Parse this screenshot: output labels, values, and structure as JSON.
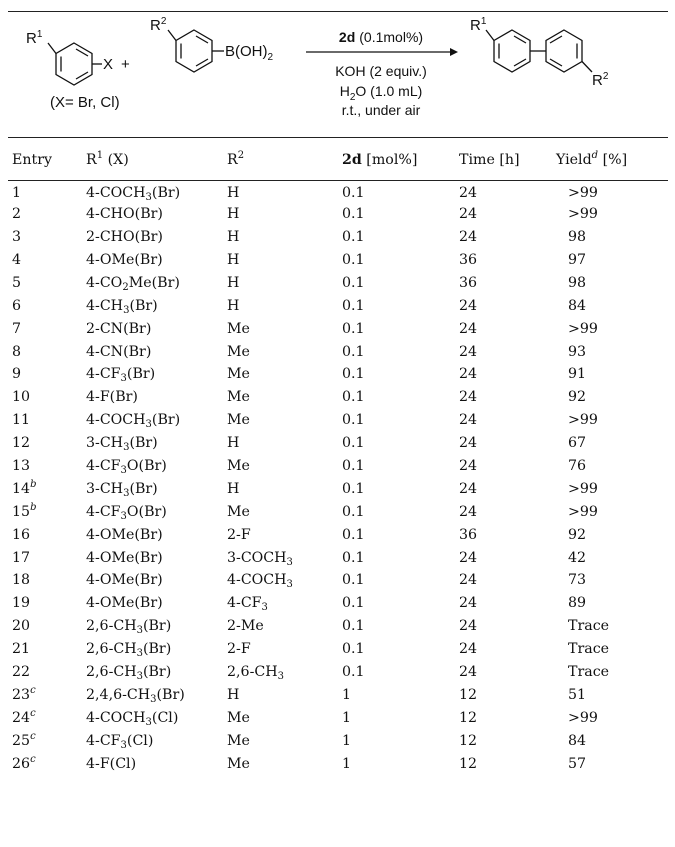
{
  "scheme": {
    "reactant1_sub": "R",
    "reactant1_sub_num": "1",
    "reactant1_group": "X",
    "plus": "+",
    "reactant2_sub": "R",
    "reactant2_sub_num": "2",
    "reactant2_group": "B(OH)",
    "reactant2_group_sub": "2",
    "x_note": "(X= Br, Cl)",
    "catalyst_bold": "2d",
    "catalyst_amount": "(0.1mol%)",
    "base": "KOH (2 equiv.)",
    "solvent_a": "H",
    "solvent_sub": "2",
    "solvent_b": "O (1.0 mL)",
    "conditions": "r.t., under air",
    "product_r1": "R",
    "product_r1_num": "1",
    "product_r2": "R",
    "product_r2_num": "2"
  },
  "table": {
    "headers": {
      "entry": "Entry",
      "r1": "R",
      "r1_sup": "1",
      "r1_suffix": " (X)",
      "r2": "R",
      "r2_sup": "2",
      "cat_bold": "2d",
      "cat_suffix": " [mol%]",
      "time": "Time [h]",
      "yield": "Yield",
      "yield_sup": "d",
      "yield_suffix": " [%]"
    },
    "rows": [
      {
        "entry": "1",
        "note": "",
        "r1": [
          [
            "4-COCH",
            "3"
          ],
          [
            "(Br)",
            ""
          ]
        ],
        "r2": [
          [
            "H",
            ""
          ]
        ],
        "cat": "0.1",
        "time": "24",
        "yield": ">99"
      },
      {
        "entry": "2",
        "note": "",
        "r1": [
          [
            "4-CHO(Br)",
            ""
          ]
        ],
        "r2": [
          [
            "H",
            ""
          ]
        ],
        "cat": "0.1",
        "time": "24",
        "yield": ">99"
      },
      {
        "entry": "3",
        "note": "",
        "r1": [
          [
            "2-CHO(Br)",
            ""
          ]
        ],
        "r2": [
          [
            "H",
            ""
          ]
        ],
        "cat": "0.1",
        "time": "24",
        "yield": "98"
      },
      {
        "entry": "4",
        "note": "",
        "r1": [
          [
            "4-OMe(Br)",
            ""
          ]
        ],
        "r2": [
          [
            "H",
            ""
          ]
        ],
        "cat": "0.1",
        "time": "36",
        "yield": "97"
      },
      {
        "entry": "5",
        "note": "",
        "r1": [
          [
            "4-CO",
            "2"
          ],
          [
            "Me(Br)",
            ""
          ]
        ],
        "r2": [
          [
            "H",
            ""
          ]
        ],
        "cat": "0.1",
        "time": "36",
        "yield": "98"
      },
      {
        "entry": "6",
        "note": "",
        "r1": [
          [
            "4-CH",
            "3"
          ],
          [
            "(Br)",
            ""
          ]
        ],
        "r2": [
          [
            "H",
            ""
          ]
        ],
        "cat": "0.1",
        "time": "24",
        "yield": "84"
      },
      {
        "entry": "7",
        "note": "",
        "r1": [
          [
            "2-CN(Br)",
            ""
          ]
        ],
        "r2": [
          [
            "Me",
            ""
          ]
        ],
        "cat": "0.1",
        "time": "24",
        "yield": ">99"
      },
      {
        "entry": "8",
        "note": "",
        "r1": [
          [
            "4-CN(Br)",
            ""
          ]
        ],
        "r2": [
          [
            "Me",
            ""
          ]
        ],
        "cat": "0.1",
        "time": "24",
        "yield": "93"
      },
      {
        "entry": "9",
        "note": "",
        "r1": [
          [
            "4-CF",
            "3"
          ],
          [
            "(Br)",
            ""
          ]
        ],
        "r2": [
          [
            "Me",
            ""
          ]
        ],
        "cat": "0.1",
        "time": "24",
        "yield": "91"
      },
      {
        "entry": "10",
        "note": "",
        "r1": [
          [
            "4-F(Br)",
            ""
          ]
        ],
        "r2": [
          [
            "Me",
            ""
          ]
        ],
        "cat": "0.1",
        "time": "24",
        "yield": "92"
      },
      {
        "entry": "11",
        "note": "",
        "r1": [
          [
            "4-COCH",
            "3"
          ],
          [
            "(Br)",
            ""
          ]
        ],
        "r2": [
          [
            "Me",
            ""
          ]
        ],
        "cat": "0.1",
        "time": "24",
        "yield": ">99"
      },
      {
        "entry": "12",
        "note": "",
        "r1": [
          [
            "3-CH",
            "3"
          ],
          [
            "(Br)",
            ""
          ]
        ],
        "r2": [
          [
            "H",
            ""
          ]
        ],
        "cat": "0.1",
        "time": "24",
        "yield": "67"
      },
      {
        "entry": "13",
        "note": "",
        "r1": [
          [
            "4-CF",
            "3"
          ],
          [
            "O(Br)",
            ""
          ]
        ],
        "r2": [
          [
            "Me",
            ""
          ]
        ],
        "cat": "0.1",
        "time": "24",
        "yield": "76"
      },
      {
        "entry": "14",
        "note": "b",
        "r1": [
          [
            "3-CH",
            "3"
          ],
          [
            "(Br)",
            ""
          ]
        ],
        "r2": [
          [
            "H",
            ""
          ]
        ],
        "cat": "0.1",
        "time": "24",
        "yield": ">99"
      },
      {
        "entry": "15",
        "note": "b",
        "r1": [
          [
            "4-CF",
            "3"
          ],
          [
            "O(Br)",
            ""
          ]
        ],
        "r2": [
          [
            "Me",
            ""
          ]
        ],
        "cat": "0.1",
        "time": "24",
        "yield": ">99"
      },
      {
        "entry": "16",
        "note": "",
        "r1": [
          [
            "4-OMe(Br)",
            ""
          ]
        ],
        "r2": [
          [
            "2-F",
            ""
          ]
        ],
        "cat": "0.1",
        "time": "36",
        "yield": "92"
      },
      {
        "entry": "17",
        "note": "",
        "r1": [
          [
            "4-OMe(Br)",
            ""
          ]
        ],
        "r2": [
          [
            "3-COCH",
            "3"
          ]
        ],
        "cat": "0.1",
        "time": "24",
        "yield": "42"
      },
      {
        "entry": "18",
        "note": "",
        "r1": [
          [
            "4-OMe(Br)",
            ""
          ]
        ],
        "r2": [
          [
            "4-COCH",
            "3"
          ]
        ],
        "cat": "0.1",
        "time": "24",
        "yield": "73"
      },
      {
        "entry": "19",
        "note": "",
        "r1": [
          [
            "4-OMe(Br)",
            ""
          ]
        ],
        "r2": [
          [
            "4-CF",
            "3"
          ]
        ],
        "cat": "0.1",
        "time": "24",
        "yield": "89"
      },
      {
        "entry": "20",
        "note": "",
        "r1": [
          [
            "2,6-CH",
            "3"
          ],
          [
            "(Br)",
            ""
          ]
        ],
        "r2": [
          [
            "2-Me",
            ""
          ]
        ],
        "cat": "0.1",
        "time": "24",
        "yield": "Trace"
      },
      {
        "entry": "21",
        "note": "",
        "r1": [
          [
            "2,6-CH",
            "3"
          ],
          [
            "(Br)",
            ""
          ]
        ],
        "r2": [
          [
            "2-F",
            ""
          ]
        ],
        "cat": "0.1",
        "time": "24",
        "yield": "Trace"
      },
      {
        "entry": "22",
        "note": "",
        "r1": [
          [
            "2,6-CH",
            "3"
          ],
          [
            "(Br)",
            ""
          ]
        ],
        "r2": [
          [
            "2,6-CH",
            "3"
          ]
        ],
        "cat": "0.1",
        "time": "24",
        "yield": "Trace"
      },
      {
        "entry": "23",
        "note": "c",
        "r1": [
          [
            "2,4,6-CH",
            "3"
          ],
          [
            "(Br)",
            ""
          ]
        ],
        "r2": [
          [
            "H",
            ""
          ]
        ],
        "cat": "1",
        "time": "12",
        "yield": "51"
      },
      {
        "entry": "24",
        "note": "c",
        "r1": [
          [
            "4-COCH",
            "3"
          ],
          [
            "(Cl)",
            ""
          ]
        ],
        "r2": [
          [
            "Me",
            ""
          ]
        ],
        "cat": "1",
        "time": "12",
        "yield": ">99"
      },
      {
        "entry": "25",
        "note": "c",
        "r1": [
          [
            "4-CF",
            "3"
          ],
          [
            "(Cl)",
            ""
          ]
        ],
        "r2": [
          [
            "Me",
            ""
          ]
        ],
        "cat": "1",
        "time": "12",
        "yield": "84"
      },
      {
        "entry": "26",
        "note": "c",
        "r1": [
          [
            "4-F(Cl)",
            ""
          ]
        ],
        "r2": [
          [
            "Me",
            ""
          ]
        ],
        "cat": "1",
        "time": "12",
        "yield": "57"
      }
    ]
  }
}
